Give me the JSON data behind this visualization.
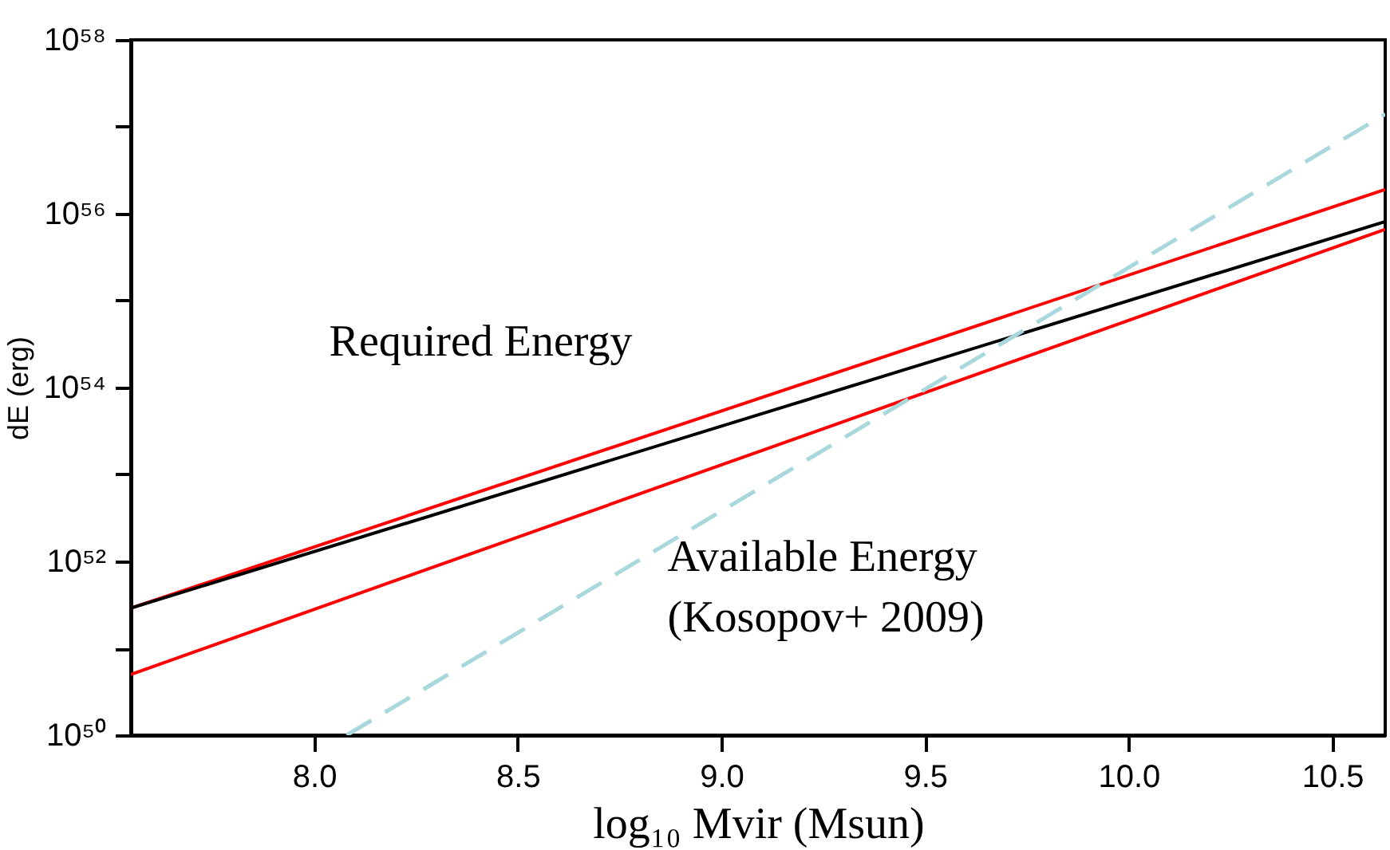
{
  "chart_data": {
    "type": "line",
    "xlabel": "log₁₀ Mvir (Msun)",
    "ylabel": "dE (erg)",
    "log": "y",
    "xlim": [
      7.55,
      10.63
    ],
    "xticks": [
      {
        "value": 8.0,
        "label": "8.0"
      },
      8.5,
      {
        "value": 9.0,
        "label": "9.0"
      },
      9.5,
      {
        "value": 10.0,
        "label": "10.0"
      },
      10.5
    ],
    "ylim": [
      1e+50,
      1e+58
    ],
    "yticks": [
      {
        "value": 1e+50,
        "label": "10⁵⁰"
      },
      {
        "value": 1e+51,
        "label": null
      },
      {
        "value": 1e+52,
        "label": "10⁵²"
      },
      {
        "value": 1e+53,
        "label": null
      },
      {
        "value": 1e+54,
        "label": "10⁵⁴"
      },
      {
        "value": 1e+55,
        "label": null
      },
      {
        "value": 1e+56,
        "label": "10⁵⁶"
      },
      {
        "value": 1e+57,
        "label": null
      },
      {
        "value": 1e+58,
        "label": "10⁵⁸"
      }
    ],
    "grid": false,
    "marker": "none",
    "series": [
      {
        "color": "#ff0000",
        "x": [
          7.55,
          10.63
        ],
        "values": [
          2.9e+51,
          1.9e+56
        ],
        "line_style": "solid"
      },
      {
        "color": "#000000",
        "x": [
          7.55,
          10.63
        ],
        "values": [
          2.9e+51,
          8.1e+55
        ],
        "line_style": "solid"
      },
      {
        "color": "#ff0000",
        "x": [
          7.55,
          10.63
        ],
        "values": [
          5e+50,
          6.6e+55
        ],
        "line_style": "solid"
      },
      {
        "color": "#a8d8dc",
        "x": [
          8.08,
          10.63
        ],
        "values": [
          1e+50,
          1.4e+57
        ],
        "line_style": "dashed"
      }
    ],
    "annotations": [
      "Required Energy",
      "Available Energy\n(Kosopov+ 2009)"
    ]
  }
}
